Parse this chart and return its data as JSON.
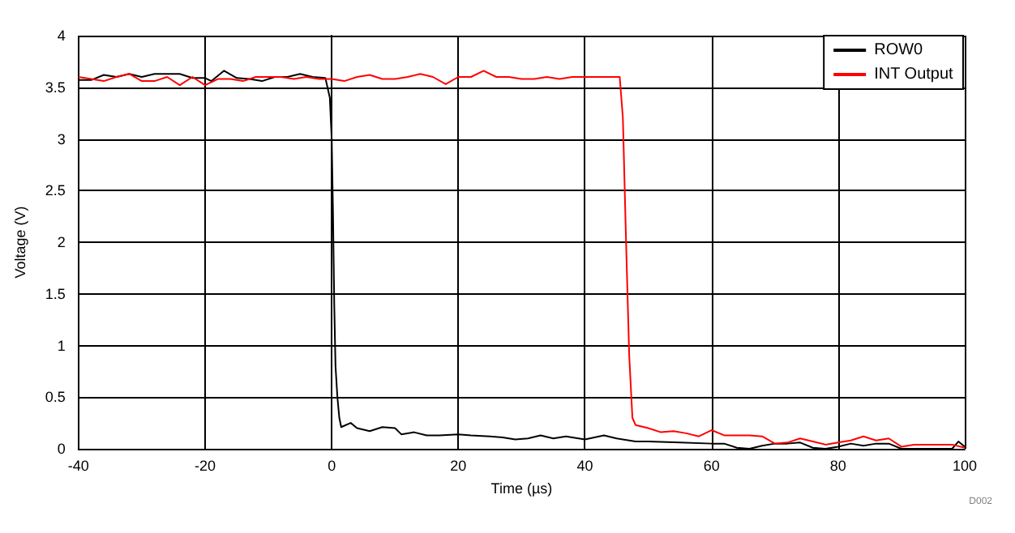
{
  "chart_data": {
    "type": "line",
    "xlabel": "Time (µs)",
    "ylabel": "Voltage (V)",
    "xlim": [
      -40,
      100
    ],
    "xticks": [
      -40,
      -20,
      0,
      20,
      40,
      60,
      80,
      100
    ],
    "ylim": [
      0,
      4
    ],
    "yticks": [
      0,
      0.5,
      1,
      1.5,
      2,
      2.5,
      3,
      3.5,
      4
    ],
    "grid": true,
    "legend": "top right",
    "marker": "none",
    "line_style": "solid",
    "annotations": [
      "D002"
    ],
    "series": [
      {
        "name": "ROW0",
        "color": "#000000",
        "x": [
          -40,
          -38,
          -36,
          -34,
          -32,
          -30,
          -28,
          -26,
          -24,
          -22,
          -20,
          -19,
          -17,
          -15,
          -13,
          -11,
          -9,
          -7,
          -5,
          -3,
          -1,
          -0.3,
          0,
          0.2,
          0.4,
          0.6,
          0.9,
          1.2,
          1.5,
          3,
          4,
          6,
          8,
          10,
          11,
          13,
          15,
          17,
          20,
          22,
          25,
          27,
          29,
          31,
          33,
          35,
          37,
          40,
          43,
          45,
          48,
          50,
          55,
          60,
          62,
          64,
          66,
          68,
          70,
          72,
          74,
          76,
          78,
          80,
          82,
          84,
          86,
          88,
          90,
          92,
          95,
          98,
          99,
          100
        ],
        "values": [
          3.57,
          3.57,
          3.62,
          3.6,
          3.63,
          3.6,
          3.63,
          3.63,
          3.63,
          3.59,
          3.59,
          3.56,
          3.66,
          3.59,
          3.58,
          3.56,
          3.6,
          3.6,
          3.63,
          3.6,
          3.59,
          3.4,
          3.0,
          2.3,
          1.4,
          0.8,
          0.5,
          0.3,
          0.21,
          0.25,
          0.2,
          0.17,
          0.21,
          0.2,
          0.14,
          0.16,
          0.13,
          0.13,
          0.14,
          0.13,
          0.12,
          0.11,
          0.09,
          0.1,
          0.13,
          0.1,
          0.12,
          0.09,
          0.13,
          0.1,
          0.07,
          0.07,
          0.06,
          0.05,
          0.05,
          0.01,
          0.0,
          0.03,
          0.05,
          0.05,
          0.06,
          0.01,
          0.0,
          0.02,
          0.05,
          0.03,
          0.05,
          0.05,
          0.0,
          0.0,
          0.0,
          0.0,
          0.07,
          0.02
        ]
      },
      {
        "name": "INT Output",
        "color": "#ff0000",
        "x": [
          -40,
          -38,
          -36,
          -34,
          -32,
          -30,
          -28,
          -26,
          -24,
          -22,
          -20,
          -18,
          -16,
          -14,
          -12,
          -10,
          -8,
          -6,
          -4,
          -2,
          0,
          2,
          4,
          6,
          8,
          10,
          12,
          14,
          16,
          18,
          20,
          22,
          24,
          26,
          28,
          30,
          32,
          34,
          36,
          38,
          40,
          42,
          44,
          45.5,
          46,
          46.5,
          47,
          47.5,
          48,
          50,
          52,
          54,
          56,
          58,
          60,
          62,
          66,
          68,
          70,
          72,
          74,
          76,
          78,
          80,
          82,
          84,
          86,
          88,
          90,
          92,
          95,
          98,
          100
        ],
        "values": [
          3.6,
          3.58,
          3.56,
          3.6,
          3.63,
          3.56,
          3.56,
          3.6,
          3.52,
          3.6,
          3.52,
          3.58,
          3.58,
          3.56,
          3.6,
          3.6,
          3.6,
          3.58,
          3.6,
          3.58,
          3.58,
          3.56,
          3.6,
          3.62,
          3.58,
          3.58,
          3.6,
          3.63,
          3.6,
          3.53,
          3.6,
          3.6,
          3.66,
          3.6,
          3.6,
          3.58,
          3.58,
          3.6,
          3.58,
          3.6,
          3.6,
          3.6,
          3.6,
          3.6,
          3.2,
          2.0,
          0.9,
          0.3,
          0.23,
          0.2,
          0.16,
          0.17,
          0.15,
          0.12,
          0.18,
          0.13,
          0.13,
          0.12,
          0.05,
          0.06,
          0.1,
          0.07,
          0.04,
          0.06,
          0.08,
          0.12,
          0.08,
          0.1,
          0.02,
          0.04,
          0.04,
          0.04,
          0.01
        ]
      }
    ]
  }
}
